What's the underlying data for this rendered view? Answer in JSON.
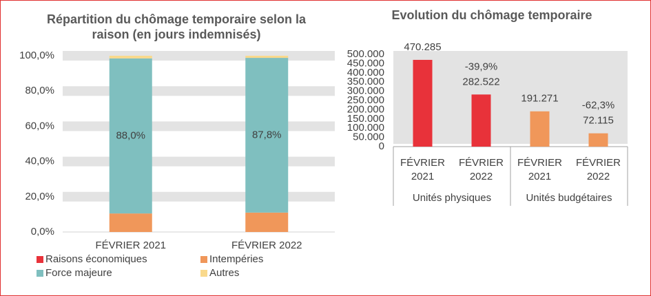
{
  "chart_data": [
    {
      "type": "stacked_bar",
      "title": "Répartition du chômage temporaire selon la raison (en jours indemnisés)",
      "categories": [
        "FÉVRIER 2021",
        "FÉVRIER 2022"
      ],
      "series": [
        {
          "name": "Raisons économiques",
          "color": "#e8323a",
          "values": [
            0,
            0
          ]
        },
        {
          "name": "Intempéries",
          "color": "#f0975a",
          "values": [
            10.5,
            11.0
          ]
        },
        {
          "name": "Force majeure",
          "color": "#7fbfbf",
          "values": [
            88.0,
            87.8
          ],
          "value_labels": [
            "88,0%",
            "87,8%"
          ]
        },
        {
          "name": "Autres",
          "color": "#f9d98c",
          "values": [
            1.5,
            1.2
          ]
        }
      ],
      "ylim": [
        0,
        100
      ],
      "yticks": [
        {
          "value": 0,
          "label": "0,0%"
        },
        {
          "value": 20,
          "label": "20,0%"
        },
        {
          "value": 40,
          "label": "40,0%"
        },
        {
          "value": 60,
          "label": "60,0%"
        },
        {
          "value": 80,
          "label": "80,0%"
        },
        {
          "value": 100,
          "label": "100,0%"
        }
      ],
      "grid": true,
      "legend": "bottom"
    },
    {
      "type": "bar",
      "title": "Evolution du chômage temporaire",
      "categories": [
        "FÉVRIER 2021",
        "FÉVRIER 2022",
        "FÉVRIER 2021",
        "FÉVRIER 2022"
      ],
      "groups": [
        "Unités physiques",
        "Unités budgétaires"
      ],
      "values": [
        470285,
        282522,
        191271,
        72115
      ],
      "value_labels": [
        "470.285",
        "282.522",
        "191.271",
        "72.115"
      ],
      "change_labels": [
        null,
        "-39,9%",
        null,
        "-62,3%"
      ],
      "colors": [
        "#e8323a",
        "#e8323a",
        "#f0975a",
        "#f0975a"
      ],
      "ylim": [
        0,
        500000
      ],
      "yticks": [
        0,
        {
          "value": 50000,
          "label": "50.000"
        },
        {
          "value": 100000,
          "label": "100.000"
        },
        {
          "value": 150000,
          "label": "150.000"
        },
        {
          "value": 200000,
          "label": "200.000"
        },
        {
          "value": 250000,
          "label": "250.000"
        },
        {
          "value": 300000,
          "label": "300.000"
        },
        {
          "value": 350000,
          "label": "350.000"
        },
        {
          "value": 400000,
          "label": "400.000"
        },
        {
          "value": 450000,
          "label": "450.000"
        },
        {
          "value": 500000,
          "label": "500.000"
        }
      ]
    }
  ]
}
